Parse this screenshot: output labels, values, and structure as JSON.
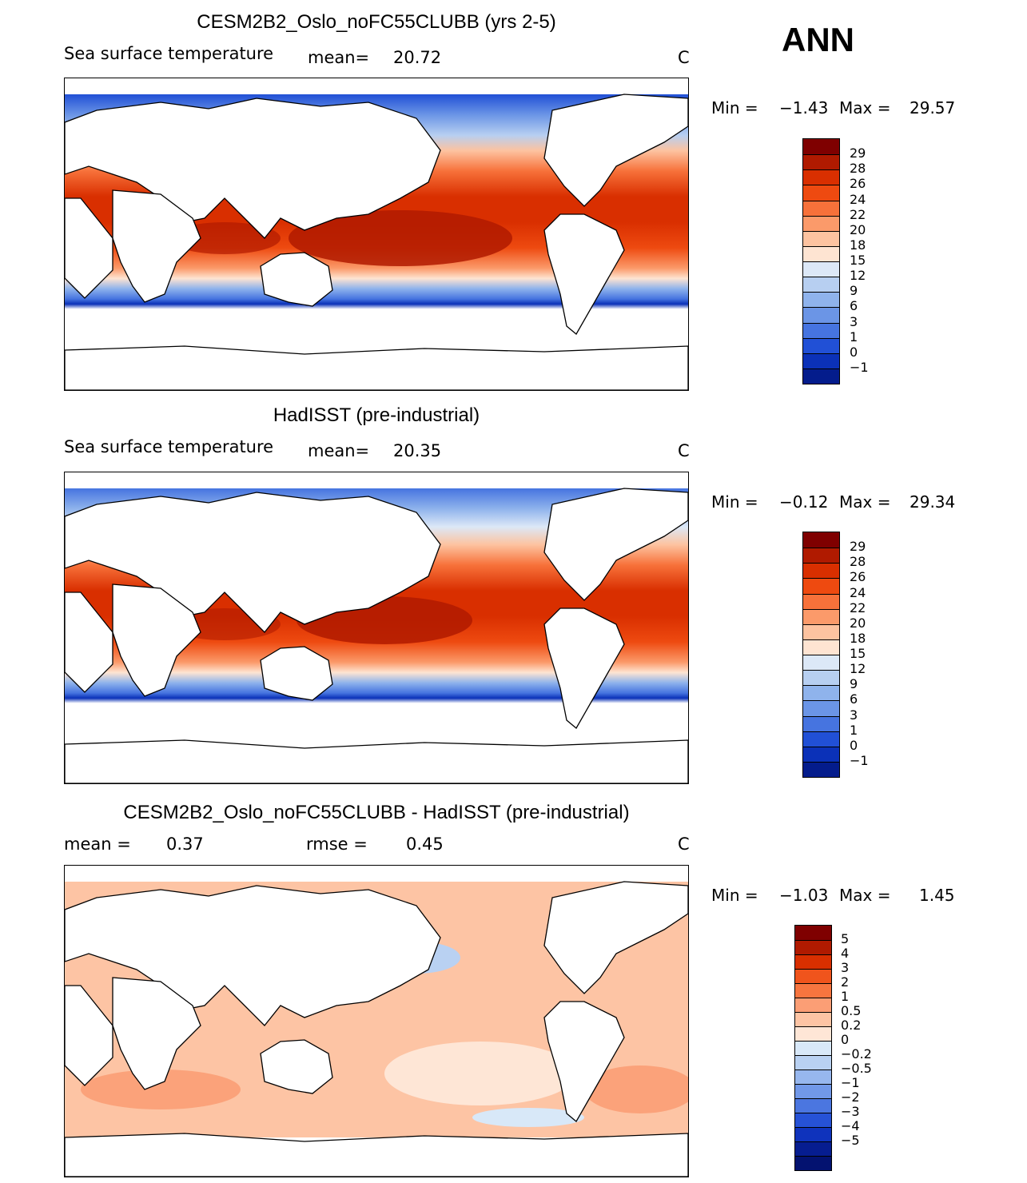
{
  "season": "ANN",
  "panel1": {
    "title": "CESM2B2_Oslo_noFC55CLUBB (yrs 2-5)",
    "variable": "Sea surface temperature",
    "mean_label": "mean=",
    "mean_value": "20.72",
    "units": "C",
    "min_label": "Min =",
    "min_value": "−1.43",
    "max_label": "Max =",
    "max_value": "29.57"
  },
  "panel2": {
    "title": "HadISST (pre-industrial)",
    "variable": "Sea surface temperature",
    "mean_label": "mean=",
    "mean_value": "20.35",
    "units": "C",
    "min_label": "Min =",
    "min_value": "−0.12",
    "max_label": "Max =",
    "max_value": "29.34"
  },
  "panel3": {
    "title": "CESM2B2_Oslo_noFC55CLUBB - HadISST (pre-industrial)",
    "mean_label": "mean =",
    "mean_value": "0.37",
    "rmse_label": "rmse =",
    "rmse_value": "0.45",
    "units": "C",
    "min_label": "Min =",
    "min_value": "−1.03",
    "max_label": "Max =",
    "max_value": "1.45"
  },
  "colorbar_sst": {
    "colors": [
      "#7f0000",
      "#b01a00",
      "#d92f00",
      "#ee4a10",
      "#f7713a",
      "#fb9a6a",
      "#fdc3a0",
      "#fee4d2",
      "#dce8f7",
      "#b7cff1",
      "#8fb3ec",
      "#6b95e6",
      "#4674e0",
      "#2150d6",
      "#0b31b8",
      "#041c8c"
    ],
    "labels": [
      "29",
      "28",
      "26",
      "24",
      "22",
      "20",
      "18",
      "15",
      "12",
      "9",
      "6",
      "3",
      "1",
      "0",
      "−1"
    ]
  },
  "colorbar_diff": {
    "colors": [
      "#7f0000",
      "#b01a00",
      "#d92f00",
      "#f0541c",
      "#f7753f",
      "#fb9e75",
      "#fdc4a4",
      "#fee6d6",
      "#d8e8f8",
      "#b9d1f2",
      "#97b7ee",
      "#7198e8",
      "#4b76e0",
      "#2652d6",
      "#0f33bc",
      "#061d90",
      "#031270"
    ],
    "labels": [
      "5",
      "4",
      "3",
      "2",
      "1",
      "0.5",
      "0.2",
      "0",
      "−0.2",
      "−0.5",
      "−1",
      "−2",
      "−3",
      "−4",
      "−5"
    ]
  }
}
